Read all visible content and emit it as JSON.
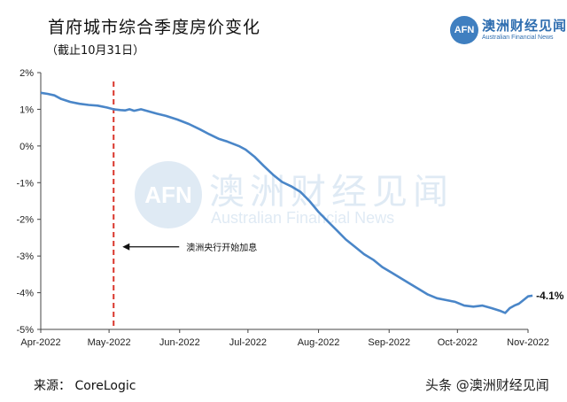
{
  "header": {
    "title": "首府城市综合季度房价变化",
    "subtitle": "（截止10月31日）"
  },
  "brand": {
    "badge": "AFN",
    "name_cn": "澳洲财经见闻",
    "name_en": "Australian Financial News"
  },
  "footer": {
    "source": "来源：  CoreLogic",
    "watermark": "头条 @澳洲财经见闻"
  },
  "colors": {
    "line": "#4a86c8",
    "marker": "#d9352b",
    "axis": "#444444",
    "brand": "#3f7fc0"
  },
  "chart_data": {
    "type": "line",
    "title": "首府城市综合季度房价变化",
    "subtitle": "（截止10月31日）",
    "xlabel": "",
    "ylabel": "",
    "ylim": [
      -5,
      2
    ],
    "yticks": [
      2,
      1,
      0,
      -1,
      -2,
      -3,
      -4,
      -5
    ],
    "ytick_labels": [
      "2%",
      "1%",
      "0%",
      "-1%",
      "-2%",
      "-3%",
      "-4%",
      "-5%"
    ],
    "xticks": [
      "Apr-2022",
      "May-2022",
      "Jun-2022",
      "Jul-2022",
      "Aug-2022",
      "Sep-2022",
      "Oct-2022",
      "Nov-2022"
    ],
    "grid": false,
    "series": [
      {
        "name": "",
        "points": [
          [
            "2022-04-01",
            1.45
          ],
          [
            "2022-04-04",
            1.42
          ],
          [
            "2022-04-07",
            1.38
          ],
          [
            "2022-04-10",
            1.28
          ],
          [
            "2022-04-14",
            1.2
          ],
          [
            "2022-04-18",
            1.15
          ],
          [
            "2022-04-22",
            1.12
          ],
          [
            "2022-04-26",
            1.1
          ],
          [
            "2022-04-30",
            1.05
          ],
          [
            "2022-05-03",
            1.0
          ],
          [
            "2022-05-06",
            0.98
          ],
          [
            "2022-05-08",
            0.97
          ],
          [
            "2022-05-10",
            1.0
          ],
          [
            "2022-05-12",
            0.96
          ],
          [
            "2022-05-15",
            1.0
          ],
          [
            "2022-05-18",
            0.95
          ],
          [
            "2022-05-22",
            0.88
          ],
          [
            "2022-05-26",
            0.82
          ],
          [
            "2022-05-31",
            0.72
          ],
          [
            "2022-06-05",
            0.6
          ],
          [
            "2022-06-10",
            0.45
          ],
          [
            "2022-06-14",
            0.32
          ],
          [
            "2022-06-18",
            0.2
          ],
          [
            "2022-06-22",
            0.12
          ],
          [
            "2022-06-27",
            0.0
          ],
          [
            "2022-06-30",
            -0.1
          ],
          [
            "2022-07-04",
            -0.3
          ],
          [
            "2022-07-08",
            -0.55
          ],
          [
            "2022-07-12",
            -0.78
          ],
          [
            "2022-07-16",
            -0.98
          ],
          [
            "2022-07-20",
            -1.1
          ],
          [
            "2022-07-24",
            -1.25
          ],
          [
            "2022-07-28",
            -1.5
          ],
          [
            "2022-08-01",
            -1.8
          ],
          [
            "2022-08-05",
            -2.05
          ],
          [
            "2022-08-09",
            -2.3
          ],
          [
            "2022-08-13",
            -2.55
          ],
          [
            "2022-08-17",
            -2.75
          ],
          [
            "2022-08-21",
            -2.95
          ],
          [
            "2022-08-25",
            -3.1
          ],
          [
            "2022-08-29",
            -3.3
          ],
          [
            "2022-09-02",
            -3.45
          ],
          [
            "2022-09-06",
            -3.6
          ],
          [
            "2022-09-10",
            -3.75
          ],
          [
            "2022-09-14",
            -3.9
          ],
          [
            "2022-09-18",
            -4.05
          ],
          [
            "2022-09-22",
            -4.15
          ],
          [
            "2022-09-26",
            -4.2
          ],
          [
            "2022-09-30",
            -4.25
          ],
          [
            "2022-10-04",
            -4.35
          ],
          [
            "2022-10-08",
            -4.38
          ],
          [
            "2022-10-12",
            -4.35
          ],
          [
            "2022-10-16",
            -4.42
          ],
          [
            "2022-10-20",
            -4.5
          ],
          [
            "2022-10-22",
            -4.55
          ],
          [
            "2022-10-24",
            -4.42
          ],
          [
            "2022-10-26",
            -4.35
          ],
          [
            "2022-10-28",
            -4.3
          ],
          [
            "2022-10-30",
            -4.2
          ],
          [
            "2022-11-01",
            -4.1
          ],
          [
            "2022-11-03",
            -4.08
          ]
        ]
      }
    ],
    "annotations": [
      {
        "type": "vline",
        "x": "2022-05-03",
        "style": "dashed",
        "color": "#d9352b"
      },
      {
        "type": "arrow_label",
        "text": "澳洲央行开始加息",
        "x": "2022-05-03",
        "y": -2.75
      },
      {
        "type": "end_label",
        "text": "-4.1%",
        "x": "2022-11-03",
        "y": -4.08
      }
    ]
  }
}
